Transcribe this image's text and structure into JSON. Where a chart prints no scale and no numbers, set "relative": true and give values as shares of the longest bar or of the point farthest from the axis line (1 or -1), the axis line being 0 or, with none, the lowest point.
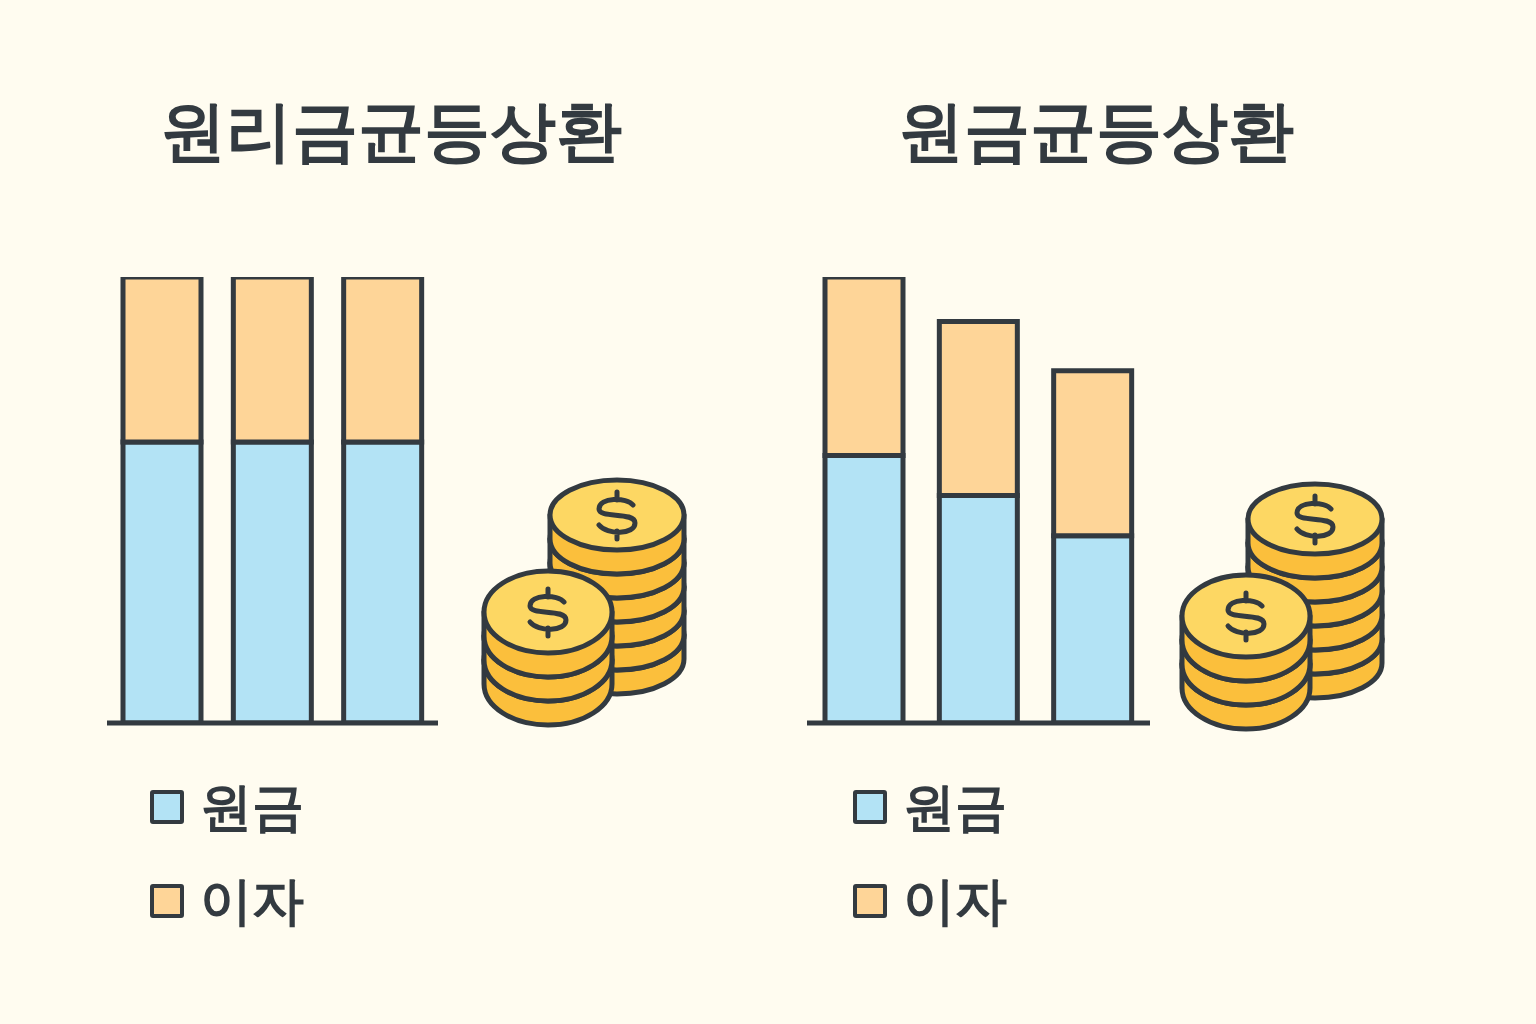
{
  "chart_data": [
    {
      "type": "bar",
      "title": "원리금균등상환",
      "categories": [
        null,
        null,
        null
      ],
      "stacked": true,
      "relative": true,
      "legend": "bottom",
      "series": [
        {
          "name": "원금",
          "color": "#b3e3f5",
          "values": [
            0.63,
            0.63,
            0.63
          ]
        },
        {
          "name": "이자",
          "color": "#fed598",
          "values": [
            0.37,
            0.37,
            0.37
          ]
        }
      ]
    },
    {
      "type": "bar",
      "title": "원금균등상환",
      "categories": [
        null,
        null,
        null
      ],
      "stacked": true,
      "relative": true,
      "legend": "bottom",
      "series": [
        {
          "name": "원금",
          "color": "#b3e3f5",
          "values": [
            0.6,
            0.51,
            0.42
          ]
        },
        {
          "name": "이자",
          "color": "#fed598",
          "values": [
            0.4,
            0.39,
            0.37
          ]
        }
      ]
    }
  ]
}
